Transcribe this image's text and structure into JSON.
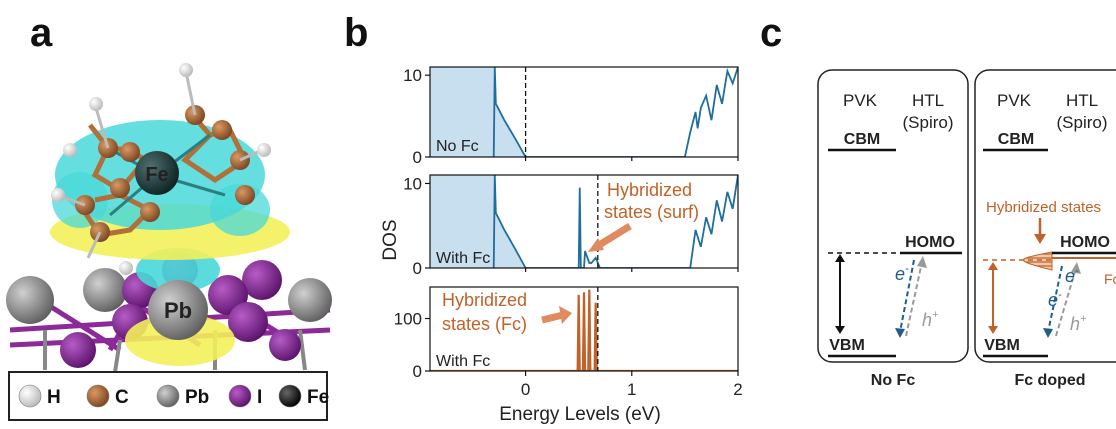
{
  "panels": {
    "a": "a",
    "b": "b",
    "c": "c"
  },
  "panel_a": {
    "atom_labels": {
      "fe": "Fe",
      "pb": "Pb"
    },
    "legend": [
      {
        "symbol": "H",
        "color": "#f2f2f2"
      },
      {
        "symbol": "C",
        "color": "#b0703a"
      },
      {
        "symbol": "Pb",
        "color": "#8a8a8a"
      },
      {
        "symbol": "I",
        "color": "#7a1f8a"
      },
      {
        "symbol": "Fe",
        "color": "#111111"
      }
    ],
    "isosurface_colors": {
      "positive": "#49d8d8",
      "negative": "#f3f05a"
    }
  },
  "chart_data": [
    {
      "type": "area",
      "panel": "No Fc",
      "ylabel": "DOS",
      "xlim": [
        -0.9,
        2.0
      ],
      "ylim": [
        0,
        11
      ],
      "yticks": [
        0,
        10
      ],
      "fermi_level": 0.0,
      "color": "#1f6e9c",
      "fill": "#c8dff0",
      "x": [
        -0.3,
        -0.29,
        -0.28,
        -0.2,
        -0.1,
        0.0,
        1.5,
        1.55,
        1.6,
        1.62,
        1.65,
        1.7,
        1.75,
        1.8,
        1.85,
        1.9,
        1.95,
        2.0
      ],
      "y": [
        0,
        11,
        6.5,
        4.5,
        2.3,
        0,
        0,
        3.0,
        5.5,
        3.5,
        6.0,
        7.5,
        4.5,
        8.8,
        6.5,
        10.5,
        9.0,
        11
      ]
    },
    {
      "type": "area",
      "panel": "With Fc",
      "ylabel": "DOS",
      "xlim": [
        -0.9,
        2.0
      ],
      "ylim": [
        0,
        11
      ],
      "yticks": [
        0,
        10
      ],
      "fermi_level": 0.68,
      "color": "#1f6e9c",
      "fill": "#c8dff0",
      "x": [
        -0.3,
        -0.29,
        -0.28,
        -0.2,
        -0.1,
        0.0,
        0.5,
        0.51,
        0.52,
        0.55,
        0.56,
        0.6,
        0.62,
        0.66,
        0.7,
        1.55,
        1.6,
        1.65,
        1.7,
        1.75,
        1.8,
        1.85,
        1.9,
        1.95,
        2.0
      ],
      "y": [
        0,
        11,
        6.5,
        4.5,
        2.3,
        0,
        0,
        9.5,
        0,
        0,
        2.0,
        0.6,
        0.6,
        1.2,
        0,
        0,
        4.5,
        2.5,
        6.0,
        4.0,
        8.0,
        5.5,
        9.0,
        7.0,
        11
      ]
    },
    {
      "type": "line",
      "panel": "With Fc",
      "xlabel": "Energy Levels (eV)",
      "xlim": [
        -0.9,
        2.0
      ],
      "ylim": [
        0,
        160
      ],
      "yticks": [
        0,
        100
      ],
      "xticks": [
        0,
        1,
        2
      ],
      "fermi_level": 0.68,
      "color": "#c0622a",
      "x": [
        -0.9,
        0.49,
        0.5,
        0.51,
        0.54,
        0.55,
        0.56,
        0.59,
        0.6,
        0.61,
        0.65,
        0.66,
        0.67,
        2.0
      ],
      "y": [
        0,
        0,
        145,
        0,
        0,
        150,
        0,
        0,
        155,
        0,
        0,
        130,
        0,
        0
      ]
    }
  ],
  "panel_b": {
    "fermi_label": "",
    "labels": {
      "no_fc": "No Fc",
      "with_fc_1": "With Fc",
      "with_fc_2": "With Fc",
      "hyb_surf_1": "Hybridized",
      "hyb_surf_2": "states (surf)",
      "hyb_fc_1": "Hybridized",
      "hyb_fc_2": "states (Fc)"
    },
    "ylabel": "DOS",
    "xlabel": "Energy Levels (eV)"
  },
  "panel_c": {
    "left": {
      "pvk": "PVK",
      "htl_1": "HTL",
      "htl_2": "(Spiro)",
      "cbm": "CBM",
      "homo": "HOMO",
      "vbm": "VBM",
      "electron": "e",
      "electron_sup": "-",
      "hole": "h",
      "hole_sup": "+",
      "caption": "No Fc"
    },
    "right": {
      "pvk": "PVK",
      "htl_1": "HTL",
      "htl_2": "(Spiro)",
      "cbm": "CBM",
      "homo": "HOMO",
      "vbm": "VBM",
      "hyb": "Hybridized states",
      "fc_cut": "Fc",
      "electron": "e",
      "electron_sup": "-",
      "hole": "h",
      "hole_sup": "+",
      "caption": "Fc doped"
    }
  }
}
